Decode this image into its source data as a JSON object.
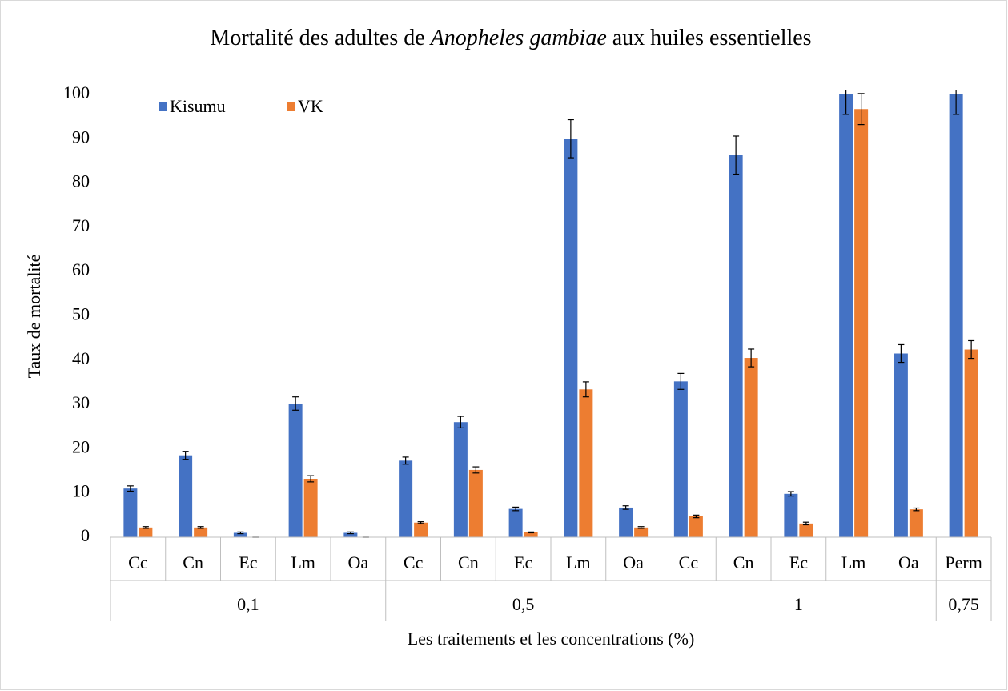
{
  "chart_data": {
    "type": "bar",
    "title": [
      "Mortalité des adultes de ",
      "Anopheles gambiae",
      " aux huiles essentielles"
    ],
    "xlabel": "Les traitements et les concentrations (%)",
    "ylabel": "Taux de mortalité",
    "categories": [
      "Cc",
      "Cn",
      "Ec",
      "Lm",
      "Oa",
      "Cc",
      "Cn",
      "Ec",
      "Lm",
      "Oa",
      "Cc",
      "Cn",
      "Ec",
      "Lm",
      "Oa",
      "Perm"
    ],
    "groups": [
      {
        "label": "0,1",
        "span": 5
      },
      {
        "label": "0,5",
        "span": 5
      },
      {
        "label": "1",
        "span": 5
      },
      {
        "label": "0,75",
        "span": 1
      }
    ],
    "series": [
      {
        "name": "Kisumu",
        "color": "#4472c4",
        "values": [
          11,
          18.5,
          1,
          30.2,
          1,
          17.3,
          26,
          6.4,
          90,
          6.7,
          35.2,
          86.3,
          9.8,
          100,
          41.5,
          100
        ],
        "errors": [
          0.6,
          0.9,
          0.2,
          1.5,
          0.2,
          0.8,
          1.3,
          0.4,
          4.3,
          0.4,
          1.8,
          4.3,
          0.5,
          4.5,
          2,
          4.5
        ]
      },
      {
        "name": "VK",
        "color": "#ed7d31",
        "values": [
          2.2,
          2.2,
          0,
          13.2,
          0,
          3.3,
          15.2,
          1.1,
          33.4,
          2.2,
          4.7,
          40.5,
          3.1,
          96.7,
          6.3,
          42.4
        ],
        "errors": [
          0.2,
          0.2,
          0,
          0.7,
          0,
          0.2,
          0.7,
          0.1,
          1.7,
          0.2,
          0.3,
          2,
          0.3,
          3.5,
          0.3,
          2
        ]
      }
    ],
    "ylim": [
      0,
      100
    ],
    "yticks": [
      0,
      10,
      20,
      30,
      40,
      50,
      60,
      70,
      80,
      90,
      100
    ],
    "grid": false,
    "legend": "upper left"
  }
}
